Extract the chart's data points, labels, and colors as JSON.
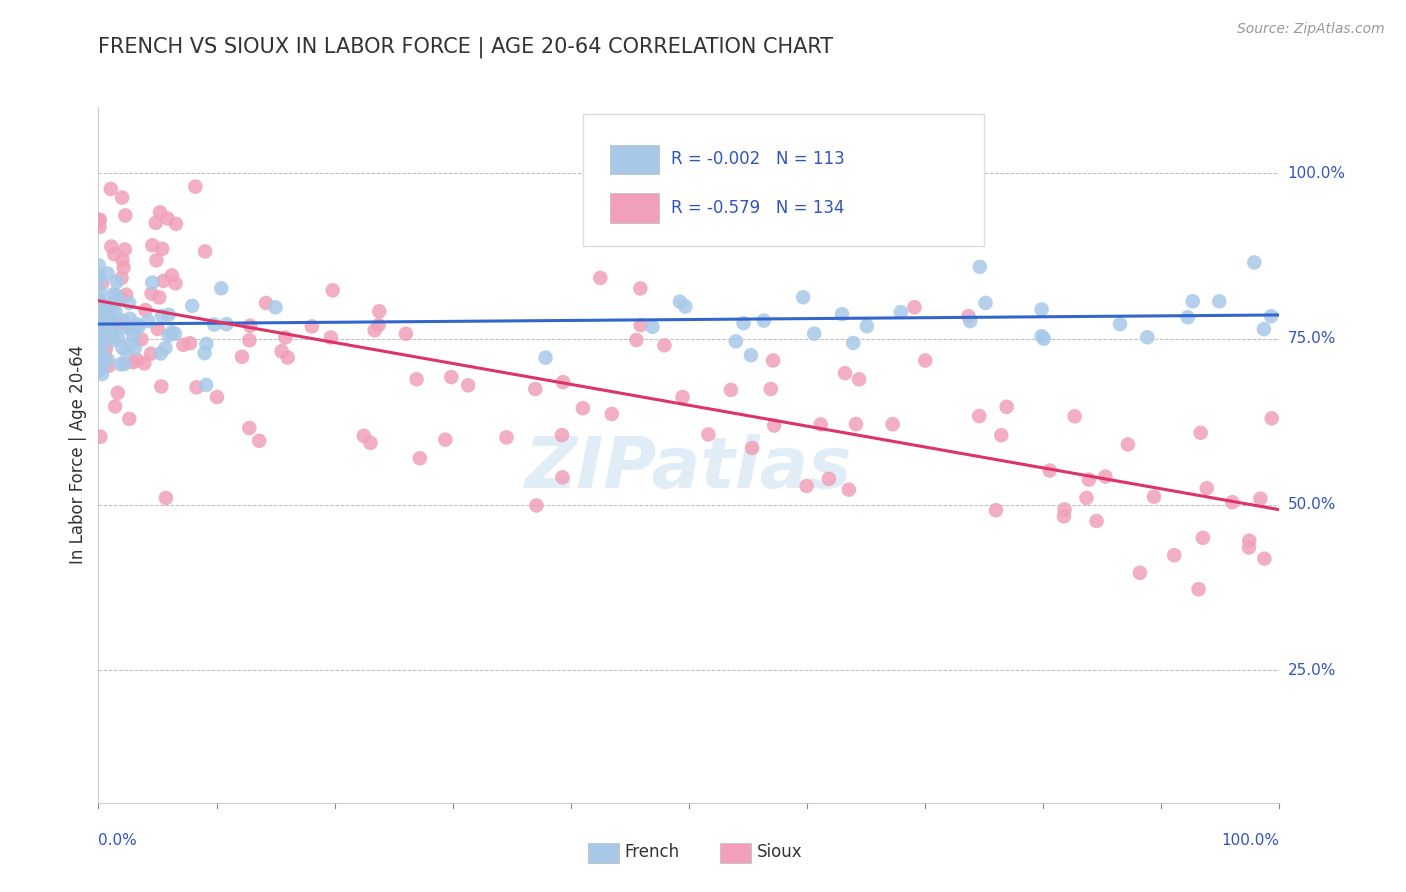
{
  "title": "FRENCH VS SIOUX IN LABOR FORCE | AGE 20-64 CORRELATION CHART",
  "source_text": "Source: ZipAtlas.com",
  "ylabel": "In Labor Force | Age 20-64",
  "french_color": "#a8c8e8",
  "sioux_color": "#f0a0b8",
  "french_line_color": "#3366cc",
  "sioux_line_color": "#dd3366",
  "label_color": "#3355bb",
  "watermark": "ZIPatlas",
  "french_R": "-0.002",
  "french_N": "113",
  "sioux_R": "-0.579",
  "sioux_N": "134",
  "xlim": [
    0.0,
    1.0
  ],
  "ylim": [
    0.05,
    1.1
  ],
  "yticks": [
    0.25,
    0.5,
    0.75,
    1.0
  ],
  "ytick_labels": [
    "25.0%",
    "50.0%",
    "75.0%",
    "100.0%"
  ]
}
